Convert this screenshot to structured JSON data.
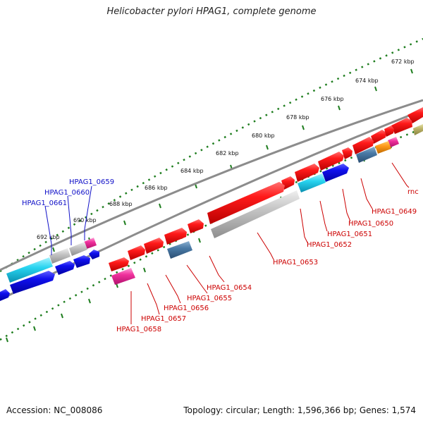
{
  "title": "Helicobacter pylori HPAG1, complete genome",
  "footer": {
    "accession": "Accession: NC_008086",
    "stats": "Topology: circular; Length: 1,596,366 bp; Genes: 1,574"
  },
  "colors": {
    "backbone": "#8c8c8c",
    "ruler": "#1e7d1e",
    "label_top": "#1010c8",
    "label_bottom": "#cc0000"
  },
  "ruler_ticks": [
    {
      "label": "672 kbp"
    },
    {
      "label": "674 kbp"
    },
    {
      "label": "676 kbp"
    },
    {
      "label": "678 kbp"
    },
    {
      "label": "680 kbp"
    },
    {
      "label": "682 kbp"
    },
    {
      "label": "684 kbp"
    },
    {
      "label": "686 kbp"
    },
    {
      "label": "688 kbp"
    },
    {
      "label": "690 kbp"
    },
    {
      "label": "692 kbp"
    }
  ],
  "gene_labels_top": [
    {
      "text": "HPAG1_0659"
    },
    {
      "text": "HPAG1_0660"
    },
    {
      "text": "HPAG1_0661"
    }
  ],
  "gene_labels_bottom": [
    {
      "text": "rnc"
    },
    {
      "text": "HPAG1_0649"
    },
    {
      "text": "HPAG1_0650"
    },
    {
      "text": "HPAG1_0651"
    },
    {
      "text": "HPAG1_0652"
    },
    {
      "text": "HPAG1_0653"
    },
    {
      "text": "HPAG1_0654"
    },
    {
      "text": "HPAG1_0655"
    },
    {
      "text": "HPAG1_0656"
    },
    {
      "text": "HPAG1_0657"
    },
    {
      "text": "HPAG1_0658"
    }
  ]
}
